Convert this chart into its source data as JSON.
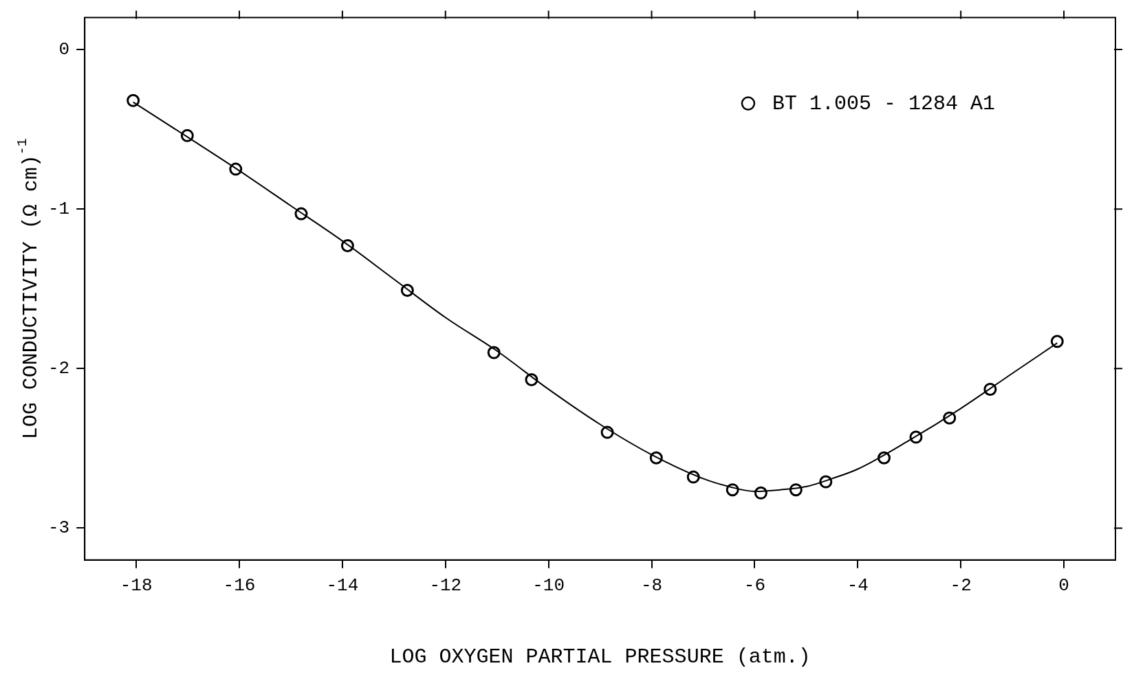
{
  "chart_data": {
    "type": "scatter",
    "xlabel": "LOG OXYGEN PARTIAL PRESSURE (atm.)",
    "ylabel": "LOG CONDUCTIVITY (Ω cm)$^{-1}$",
    "xlim": [
      -19,
      1
    ],
    "ylim": [
      -3.2,
      0.2
    ],
    "xticks": [
      -18,
      -16,
      -14,
      -12,
      -10,
      -8,
      -6,
      -4,
      -2,
      0
    ],
    "yticks": [
      -3,
      -2,
      -1,
      0
    ],
    "grid": false,
    "legend": "top right",
    "marker": "circle",
    "series": [
      {
        "name": "BT 1.005 - 1284 A1",
        "color": "#000000",
        "x": [
          -18.06,
          -17.01,
          -16.07,
          -14.8,
          -13.9,
          -12.74,
          -11.06,
          -10.33,
          -8.86,
          -7.91,
          -7.19,
          -6.43,
          -5.88,
          -5.2,
          -4.62,
          -3.49,
          -2.87,
          -2.22,
          -1.43,
          -0.13
        ],
        "values": [
          -0.32,
          -0.54,
          -0.75,
          -1.03,
          -1.23,
          -1.51,
          -1.9,
          -2.07,
          -2.4,
          -2.56,
          -2.68,
          -2.76,
          -2.78,
          -2.76,
          -2.71,
          -2.56,
          -2.43,
          -2.31,
          -2.13,
          -1.83
        ]
      },
      {
        "type": "line",
        "color": "#000000",
        "line_style": "solid",
        "marker": "none",
        "x": [
          -18.06,
          -17,
          -16,
          -15,
          -14,
          -13,
          -12,
          -11,
          -10,
          -9,
          -8,
          -7,
          -6.5,
          -6,
          -5.5,
          -5,
          -4.5,
          -4,
          -3,
          -2,
          -1,
          -0.13
        ],
        "values": [
          -0.33,
          -0.55,
          -0.76,
          -0.98,
          -1.2,
          -1.44,
          -1.68,
          -1.89,
          -2.13,
          -2.35,
          -2.54,
          -2.69,
          -2.74,
          -2.77,
          -2.76,
          -2.74,
          -2.69,
          -2.63,
          -2.45,
          -2.25,
          -2.03,
          -1.84
        ]
      }
    ]
  }
}
